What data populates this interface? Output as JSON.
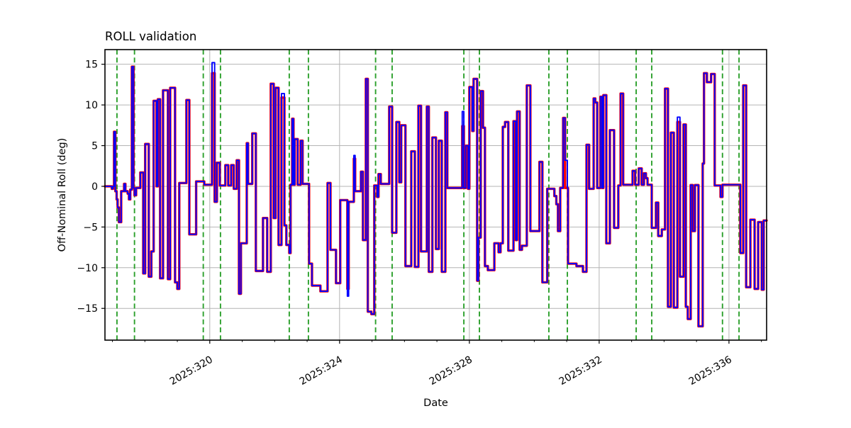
{
  "title": "ROLL validation",
  "colors": {
    "reference_series": "#ff0000",
    "validation_series": "#0000ff",
    "event_line": "#2ca02c",
    "grid": "#b4b4b4",
    "spine": "#000000",
    "background": "#ffffff"
  },
  "chart_data": {
    "type": "line",
    "title": "ROLL validation",
    "xlabel": "Date",
    "ylabel": "Off-Nominal Roll (deg)",
    "xlim": [
      316.77,
      337.16
    ],
    "ylim": [
      -18.9,
      16.8
    ],
    "grid": true,
    "legend": "none",
    "step_mode": "post",
    "x_major_ticks": [
      320,
      324,
      328,
      332,
      336
    ],
    "x_major_tick_labels": [
      "2025:320",
      "2025:324",
      "2025:328",
      "2025:332",
      "2025:336"
    ],
    "x_tick_label_rotation": 30,
    "x_minor_ticks_every": 1,
    "y_ticks": [
      -15,
      -10,
      -5,
      0,
      5,
      10,
      15
    ],
    "y_tick_labels": [
      "−15",
      "−10",
      "−5",
      "0",
      "5",
      "10",
      "15"
    ],
    "event_lines": {
      "style": "dashed",
      "color": "#2ca02c",
      "x": [
        317.14,
        317.68,
        319.8,
        320.33,
        322.45,
        323.04,
        325.11,
        325.62,
        327.83,
        328.31,
        330.45,
        331.02,
        333.14,
        333.62,
        335.8,
        336.31
      ]
    },
    "series": [
      {
        "id": "reference-roll",
        "color": "#ff0000",
        "linewidth": 3.4,
        "points": [
          [
            316.77,
            0.0
          ],
          [
            316.98,
            -0.3
          ],
          [
            317.02,
            0.0
          ],
          [
            317.05,
            6.7
          ],
          [
            317.09,
            -0.6
          ],
          [
            317.13,
            -1.6
          ],
          [
            317.16,
            -2.6
          ],
          [
            317.2,
            -4.4
          ],
          [
            317.27,
            -0.6
          ],
          [
            317.36,
            0.3
          ],
          [
            317.4,
            -0.6
          ],
          [
            317.47,
            -0.9
          ],
          [
            317.51,
            -1.6
          ],
          [
            317.55,
            -0.4
          ],
          [
            317.6,
            14.7
          ],
          [
            317.65,
            -0.2
          ],
          [
            317.68,
            -1.1
          ],
          [
            317.73,
            -0.2
          ],
          [
            317.86,
            1.7
          ],
          [
            317.95,
            -10.7
          ],
          [
            318.01,
            5.2
          ],
          [
            318.12,
            -11.1
          ],
          [
            318.2,
            -8.0
          ],
          [
            318.27,
            10.5
          ],
          [
            318.36,
            0.0
          ],
          [
            318.4,
            10.7
          ],
          [
            318.47,
            -11.3
          ],
          [
            318.56,
            11.8
          ],
          [
            318.71,
            -11.4
          ],
          [
            318.78,
            12.1
          ],
          [
            318.93,
            -11.8
          ],
          [
            319.0,
            -12.6
          ],
          [
            319.06,
            0.4
          ],
          [
            319.28,
            10.6
          ],
          [
            319.37,
            -5.9
          ],
          [
            319.58,
            0.6
          ],
          [
            319.83,
            0.2
          ],
          [
            320.07,
            13.9
          ],
          [
            320.15,
            -1.9
          ],
          [
            320.22,
            2.9
          ],
          [
            320.31,
            0.1
          ],
          [
            320.48,
            2.6
          ],
          [
            320.57,
            0.1
          ],
          [
            320.66,
            2.6
          ],
          [
            320.74,
            -0.3
          ],
          [
            320.83,
            3.2
          ],
          [
            320.9,
            -13.2
          ],
          [
            320.96,
            -7.0
          ],
          [
            321.14,
            5.3
          ],
          [
            321.18,
            0.3
          ],
          [
            321.31,
            6.5
          ],
          [
            321.42,
            -10.4
          ],
          [
            321.64,
            -3.9
          ],
          [
            321.77,
            -10.5
          ],
          [
            321.88,
            12.6
          ],
          [
            321.97,
            -3.9
          ],
          [
            322.03,
            12.1
          ],
          [
            322.12,
            -7.2
          ],
          [
            322.21,
            10.9
          ],
          [
            322.3,
            -4.8
          ],
          [
            322.36,
            -7.2
          ],
          [
            322.45,
            -8.2
          ],
          [
            322.49,
            0.2
          ],
          [
            322.54,
            8.3
          ],
          [
            322.58,
            0.2
          ],
          [
            322.62,
            5.8
          ],
          [
            322.71,
            0.2
          ],
          [
            322.8,
            5.6
          ],
          [
            322.86,
            0.3
          ],
          [
            323.06,
            -9.5
          ],
          [
            323.15,
            -12.2
          ],
          [
            323.41,
            -12.9
          ],
          [
            323.63,
            0.4
          ],
          [
            323.72,
            -7.8
          ],
          [
            323.89,
            -11.9
          ],
          [
            324.02,
            -1.7
          ],
          [
            324.24,
            -12.6
          ],
          [
            324.28,
            -1.9
          ],
          [
            324.44,
            3.4
          ],
          [
            324.48,
            -0.6
          ],
          [
            324.66,
            1.8
          ],
          [
            324.72,
            -6.6
          ],
          [
            324.81,
            13.2
          ],
          [
            324.87,
            -15.4
          ],
          [
            324.98,
            -15.7
          ],
          [
            325.07,
            0.1
          ],
          [
            325.16,
            -1.3
          ],
          [
            325.2,
            1.5
          ],
          [
            325.27,
            0.3
          ],
          [
            325.53,
            9.8
          ],
          [
            325.62,
            -5.7
          ],
          [
            325.75,
            7.9
          ],
          [
            325.84,
            0.5
          ],
          [
            325.9,
            7.5
          ],
          [
            326.03,
            -9.8
          ],
          [
            326.21,
            4.3
          ],
          [
            326.32,
            -9.9
          ],
          [
            326.43,
            9.9
          ],
          [
            326.51,
            -8.0
          ],
          [
            326.69,
            9.8
          ],
          [
            326.75,
            -10.5
          ],
          [
            326.86,
            6.0
          ],
          [
            326.97,
            -7.7
          ],
          [
            327.06,
            5.6
          ],
          [
            327.15,
            -10.5
          ],
          [
            327.26,
            9.1
          ],
          [
            327.32,
            -0.2
          ],
          [
            327.78,
            7.4
          ],
          [
            327.83,
            -0.2
          ],
          [
            327.89,
            5.0
          ],
          [
            327.96,
            -0.3
          ],
          [
            328.0,
            12.2
          ],
          [
            328.09,
            6.8
          ],
          [
            328.13,
            13.2
          ],
          [
            328.24,
            -11.6
          ],
          [
            328.28,
            -6.3
          ],
          [
            328.35,
            11.7
          ],
          [
            328.42,
            7.2
          ],
          [
            328.48,
            -9.8
          ],
          [
            328.57,
            -10.3
          ],
          [
            328.77,
            -7.0
          ],
          [
            328.9,
            -8.1
          ],
          [
            328.96,
            -7.0
          ],
          [
            329.03,
            7.3
          ],
          [
            329.1,
            7.9
          ],
          [
            329.2,
            -7.9
          ],
          [
            329.36,
            8.0
          ],
          [
            329.43,
            -6.6
          ],
          [
            329.47,
            9.2
          ],
          [
            329.55,
            -7.8
          ],
          [
            329.62,
            -7.3
          ],
          [
            329.77,
            12.4
          ],
          [
            329.88,
            -5.5
          ],
          [
            330.16,
            3.0
          ],
          [
            330.25,
            -11.8
          ],
          [
            330.4,
            -0.3
          ],
          [
            330.62,
            -1.2
          ],
          [
            330.68,
            -2.2
          ],
          [
            330.73,
            -5.5
          ],
          [
            330.8,
            -0.2
          ],
          [
            330.89,
            8.4
          ],
          [
            330.95,
            -0.2
          ],
          [
            331.04,
            -9.5
          ],
          [
            331.3,
            -9.8
          ],
          [
            331.5,
            -10.5
          ],
          [
            331.61,
            5.1
          ],
          [
            331.69,
            -0.3
          ],
          [
            331.83,
            10.8
          ],
          [
            331.88,
            10.3
          ],
          [
            331.94,
            -0.2
          ],
          [
            332.04,
            11.0
          ],
          [
            332.09,
            -0.2
          ],
          [
            332.13,
            11.2
          ],
          [
            332.22,
            -7.0
          ],
          [
            332.33,
            6.9
          ],
          [
            332.46,
            -5.1
          ],
          [
            332.59,
            0.1
          ],
          [
            332.66,
            11.4
          ],
          [
            332.74,
            0.2
          ],
          [
            333.03,
            1.9
          ],
          [
            333.11,
            0.2
          ],
          [
            333.22,
            2.2
          ],
          [
            333.31,
            0.2
          ],
          [
            333.38,
            1.6
          ],
          [
            333.44,
            1.0
          ],
          [
            333.49,
            0.2
          ],
          [
            333.62,
            -5.1
          ],
          [
            333.75,
            -2.0
          ],
          [
            333.82,
            -6.1
          ],
          [
            333.93,
            -5.3
          ],
          [
            334.03,
            12.0
          ],
          [
            334.12,
            -14.8
          ],
          [
            334.21,
            6.6
          ],
          [
            334.3,
            -14.9
          ],
          [
            334.41,
            7.9
          ],
          [
            334.49,
            -11.1
          ],
          [
            334.6,
            7.6
          ],
          [
            334.67,
            -14.8
          ],
          [
            334.73,
            -16.3
          ],
          [
            334.82,
            0.15
          ],
          [
            334.88,
            -5.5
          ],
          [
            334.95,
            0.15
          ],
          [
            335.06,
            -17.2
          ],
          [
            335.19,
            2.8
          ],
          [
            335.23,
            13.9
          ],
          [
            335.32,
            12.8
          ],
          [
            335.45,
            13.8
          ],
          [
            335.56,
            0.1
          ],
          [
            335.74,
            -1.3
          ],
          [
            335.8,
            0.2
          ],
          [
            336.35,
            -8.2
          ],
          [
            336.44,
            12.4
          ],
          [
            336.53,
            -12.4
          ],
          [
            336.66,
            -4.1
          ],
          [
            336.79,
            -12.6
          ],
          [
            336.9,
            -4.4
          ],
          [
            337.01,
            -12.7
          ],
          [
            337.07,
            -4.2
          ]
        ]
      },
      {
        "id": "validation-roll",
        "color": "#0000ff",
        "linewidth": 1.9,
        "base": "reference-roll",
        "overrides": [
          [
            320.07,
            320.15,
            15.2
          ],
          [
            322.21,
            322.3,
            11.4
          ],
          [
            324.24,
            324.28,
            -13.5
          ],
          [
            324.44,
            324.48,
            3.8
          ],
          [
            327.78,
            327.83,
            9.2
          ],
          [
            330.95,
            331.02,
            3.2
          ],
          [
            334.41,
            334.49,
            8.5
          ]
        ]
      }
    ]
  }
}
